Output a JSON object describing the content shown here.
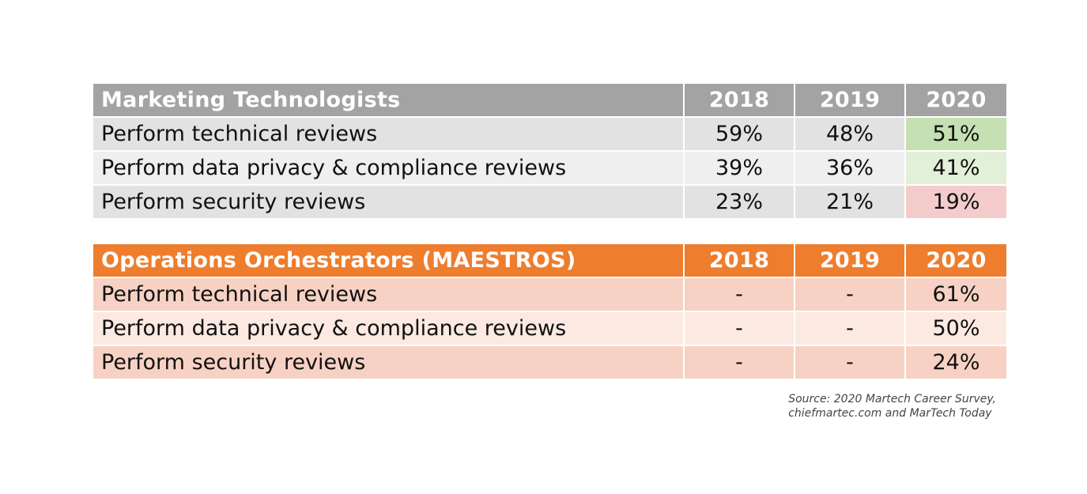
{
  "chart_data": [
    {
      "type": "table",
      "title": "Marketing Technologists",
      "columns": [
        "2018",
        "2019",
        "2020"
      ],
      "rows": [
        {
          "label": "Perform technical reviews",
          "values": [
            "59%",
            "48%",
            "51%"
          ]
        },
        {
          "label": "Perform data privacy & compliance reviews",
          "values": [
            "39%",
            "36%",
            "41%"
          ]
        },
        {
          "label": "Perform security reviews",
          "values": [
            "23%",
            "21%",
            "19%"
          ]
        }
      ],
      "highlight_colors": {
        "up_strong": "#c5e0b3",
        "up_light": "#e2efd9",
        "down": "#f4cccc"
      },
      "header_color": "#a3a3a3"
    },
    {
      "type": "table",
      "title": "Operations Orchestrators (MAESTROS)",
      "columns": [
        "2018",
        "2019",
        "2020"
      ],
      "rows": [
        {
          "label": "Perform technical reviews",
          "values": [
            "-",
            "-",
            "61%"
          ]
        },
        {
          "label": "Perform data privacy & compliance reviews",
          "values": [
            "-",
            "-",
            "50%"
          ]
        },
        {
          "label": "Perform security reviews",
          "values": [
            "-",
            "-",
            "24%"
          ]
        }
      ],
      "header_color": "#ee7d2d"
    }
  ],
  "source": {
    "line1": "Source: 2020 Martech Career Survey,",
    "line2": "chiefmartec.com and MarTech Today"
  }
}
